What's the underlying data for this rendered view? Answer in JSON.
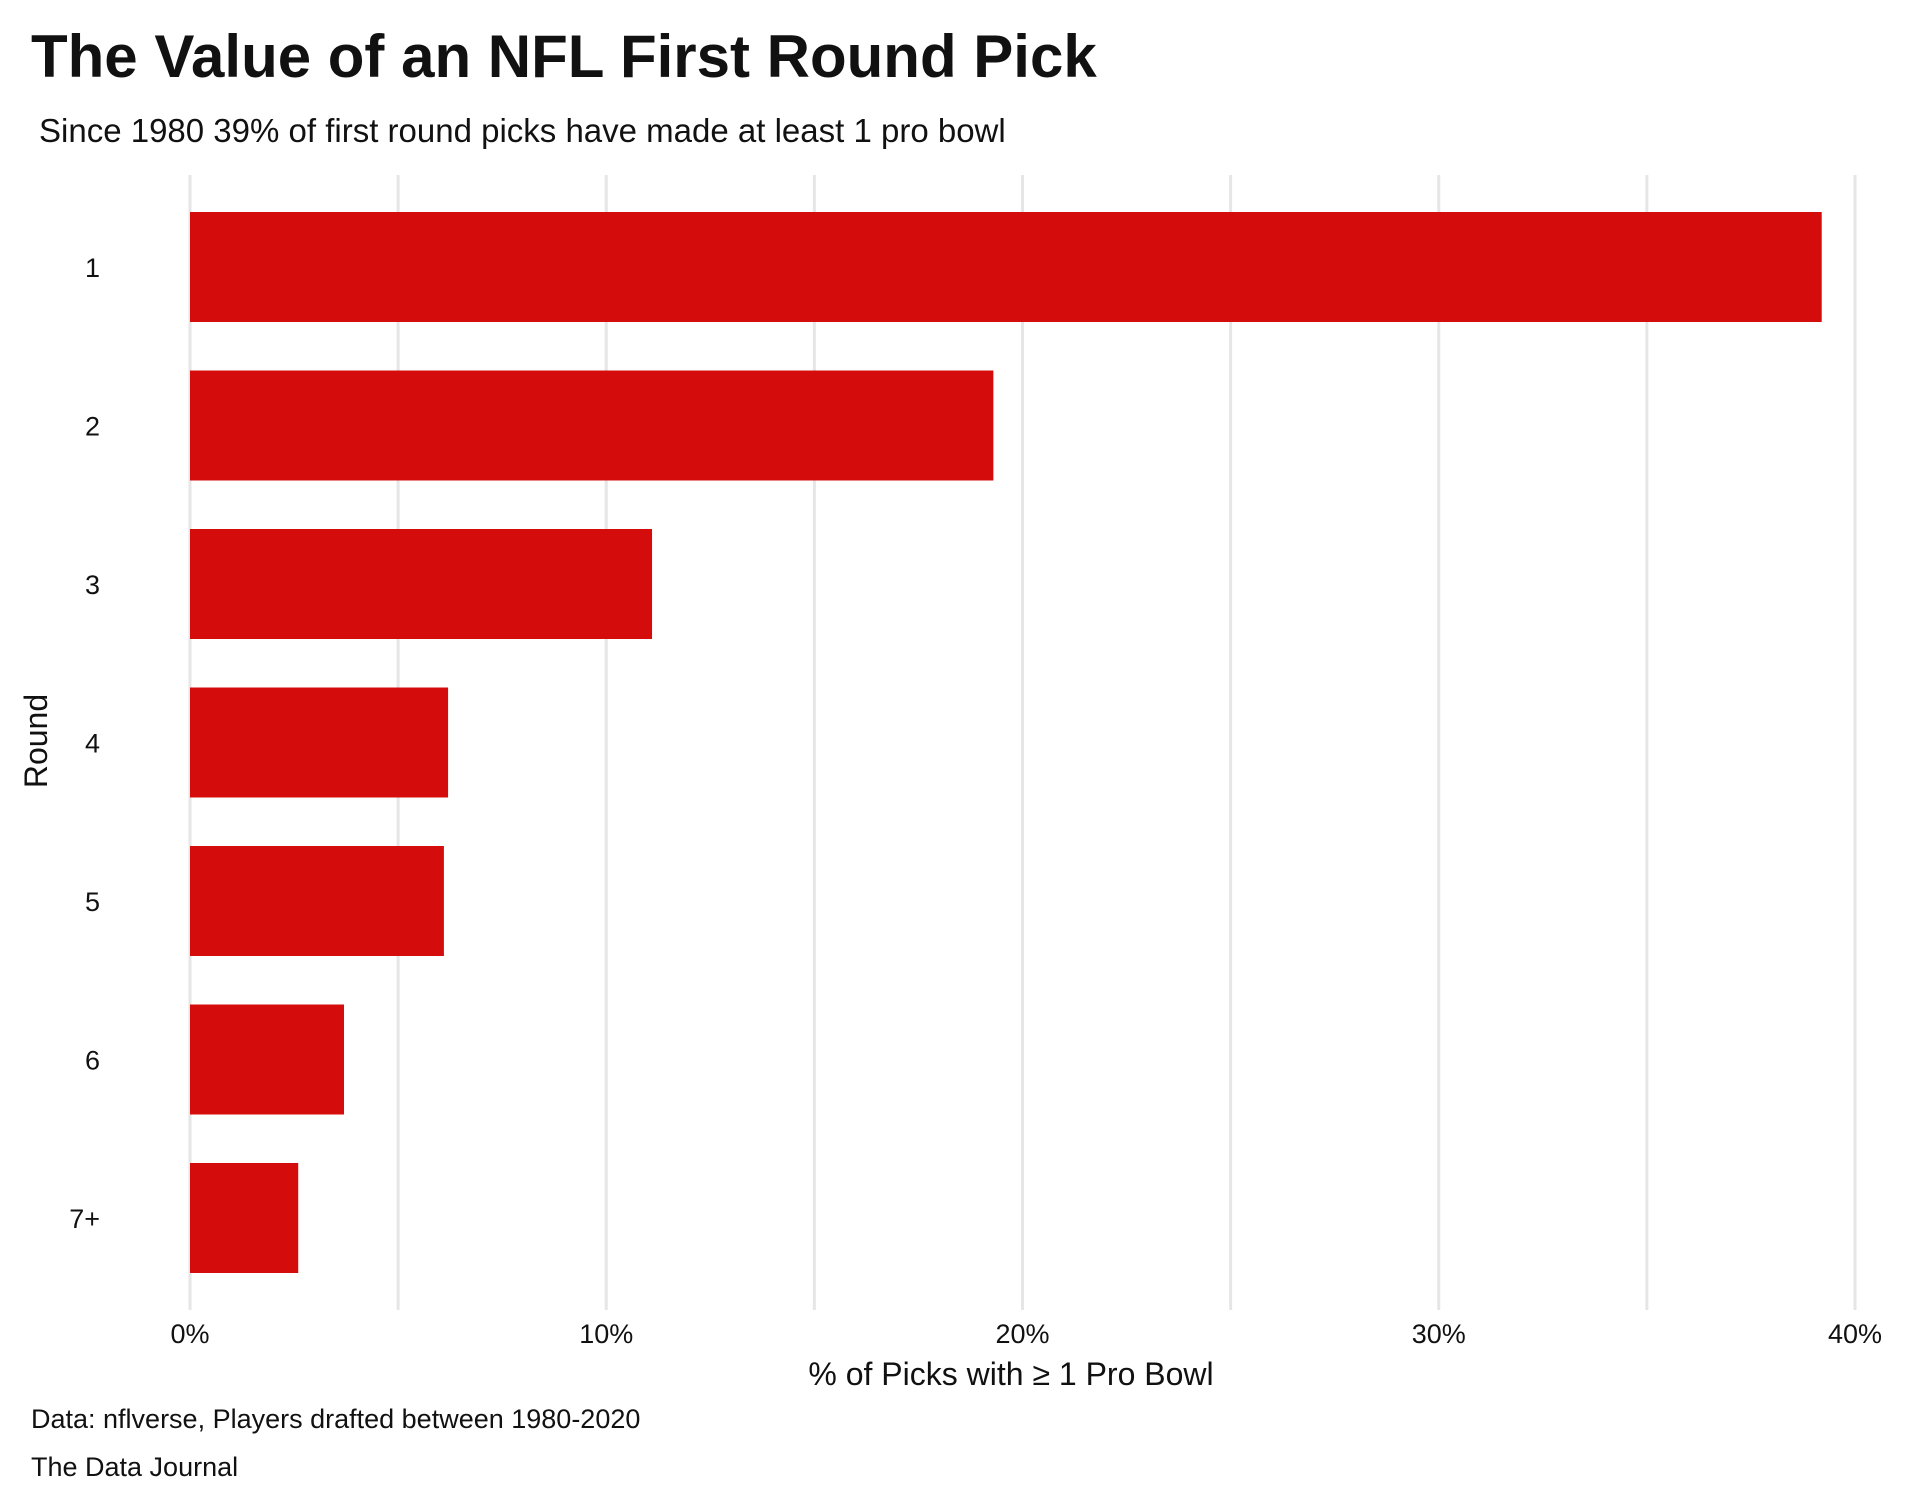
{
  "chart_data": {
    "type": "bar",
    "orientation": "horizontal",
    "title": "The Value of an NFL First Round Pick",
    "subtitle": "Since 1980 39% of first round picks have made at least 1 pro bowl",
    "xlabel": "% of Picks with ≥ 1 Pro Bowl",
    "ylabel": "Round",
    "categories": [
      "1",
      "2",
      "3",
      "4",
      "5",
      "6",
      "7+"
    ],
    "values": [
      39.2,
      19.3,
      11.1,
      6.2,
      6.1,
      3.7,
      2.6
    ],
    "xlim": [
      0,
      40
    ],
    "xticks": [
      0,
      10,
      20,
      30,
      40
    ],
    "xtick_labels": [
      "0%",
      "10%",
      "20%",
      "30%",
      "40%"
    ],
    "grid": true,
    "bar_color": "#d40c0c",
    "grid_color": "#e6e6e6"
  },
  "caption": {
    "source": "Data: nflverse, Players drafted between 1980-2020",
    "credit": "The Data Journal"
  }
}
